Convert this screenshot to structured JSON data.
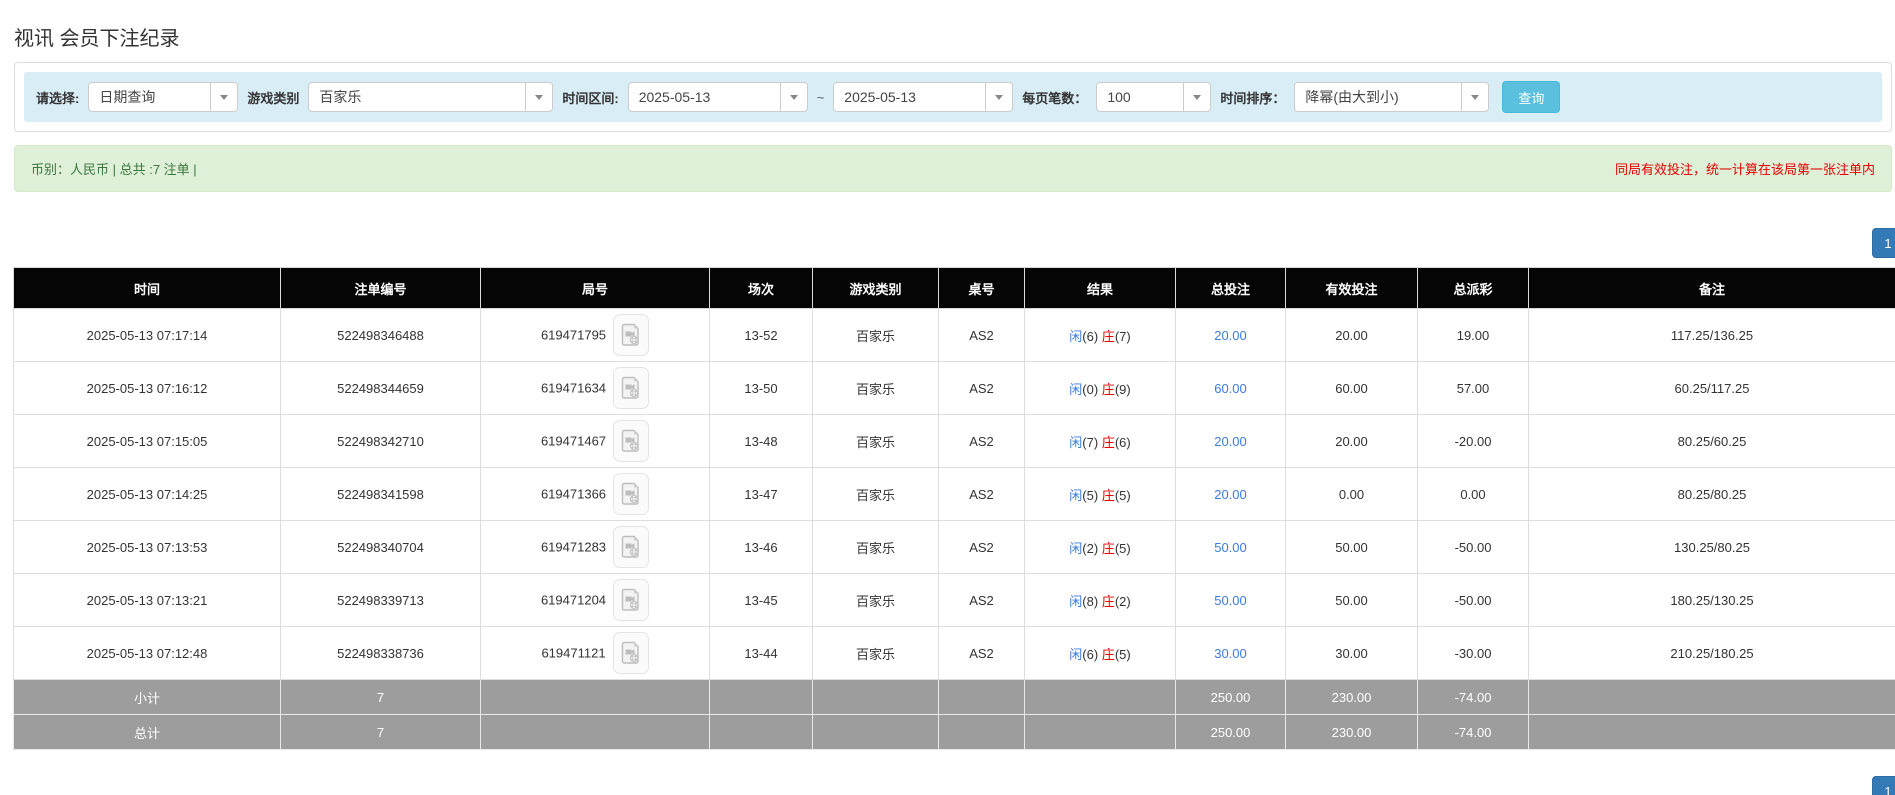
{
  "page": {
    "title": "视讯 会员下注纪录"
  },
  "filters": {
    "select_label": "请选择:",
    "select_value": "日期查询",
    "game_label": "游戏类别",
    "game_value": "百家乐",
    "range_label": "时间区间:",
    "date_from": "2025-05-13",
    "tilde": "~",
    "date_to": "2025-05-13",
    "per_page_label": "每页笔数：",
    "per_page_value": "100",
    "sort_label": "时间排序：",
    "sort_value": "降幂(由大到小)",
    "search_button": "查询"
  },
  "summary": {
    "left": "币别：人民币 | 总共 :7 注单 |",
    "right": "同局有效投注，统一计算在该局第一张注单内"
  },
  "pagination": {
    "page": "1"
  },
  "table": {
    "headers": [
      "时间",
      "注单编号",
      "局号",
      "场次",
      "游戏类别",
      "桌号",
      "结果",
      "总投注",
      "有效投注",
      "总派彩",
      "备注"
    ],
    "rows": [
      {
        "time": "2025-05-13 07:17:14",
        "bet_id": "522498346488",
        "round": "619471795",
        "session": "13-52",
        "game": "百家乐",
        "table_no": "AS2",
        "result_p": "闲",
        "result_p_n": "(6)",
        "result_b": "庄",
        "result_b_n": "(7)",
        "total_bet": "20.00",
        "valid_bet": "20.00",
        "payout": "19.00",
        "remark": "117.25/136.25"
      },
      {
        "time": "2025-05-13 07:16:12",
        "bet_id": "522498344659",
        "round": "619471634",
        "session": "13-50",
        "game": "百家乐",
        "table_no": "AS2",
        "result_p": "闲",
        "result_p_n": "(0)",
        "result_b": "庄",
        "result_b_n": "(9)",
        "total_bet": "60.00",
        "valid_bet": "60.00",
        "payout": "57.00",
        "remark": "60.25/117.25"
      },
      {
        "time": "2025-05-13 07:15:05",
        "bet_id": "522498342710",
        "round": "619471467",
        "session": "13-48",
        "game": "百家乐",
        "table_no": "AS2",
        "result_p": "闲",
        "result_p_n": "(7)",
        "result_b": "庄",
        "result_b_n": "(6)",
        "total_bet": "20.00",
        "valid_bet": "20.00",
        "payout": "-20.00",
        "remark": "80.25/60.25"
      },
      {
        "time": "2025-05-13 07:14:25",
        "bet_id": "522498341598",
        "round": "619471366",
        "session": "13-47",
        "game": "百家乐",
        "table_no": "AS2",
        "result_p": "闲",
        "result_p_n": "(5)",
        "result_b": "庄",
        "result_b_n": "(5)",
        "total_bet": "20.00",
        "valid_bet": "0.00",
        "payout": "0.00",
        "remark": "80.25/80.25"
      },
      {
        "time": "2025-05-13 07:13:53",
        "bet_id": "522498340704",
        "round": "619471283",
        "session": "13-46",
        "game": "百家乐",
        "table_no": "AS2",
        "result_p": "闲",
        "result_p_n": "(2)",
        "result_b": "庄",
        "result_b_n": "(5)",
        "total_bet": "50.00",
        "valid_bet": "50.00",
        "payout": "-50.00",
        "remark": "130.25/80.25"
      },
      {
        "time": "2025-05-13 07:13:21",
        "bet_id": "522498339713",
        "round": "619471204",
        "session": "13-45",
        "game": "百家乐",
        "table_no": "AS2",
        "result_p": "闲",
        "result_p_n": "(8)",
        "result_b": "庄",
        "result_b_n": "(2)",
        "total_bet": "50.00",
        "valid_bet": "50.00",
        "payout": "-50.00",
        "remark": "180.25/130.25"
      },
      {
        "time": "2025-05-13 07:12:48",
        "bet_id": "522498338736",
        "round": "619471121",
        "session": "13-44",
        "game": "百家乐",
        "table_no": "AS2",
        "result_p": "闲",
        "result_p_n": "(6)",
        "result_b": "庄",
        "result_b_n": "(5)",
        "total_bet": "30.00",
        "valid_bet": "30.00",
        "payout": "-30.00",
        "remark": "210.25/180.25"
      }
    ],
    "subtotal": {
      "label": "小计",
      "count": "7",
      "total_bet": "250.00",
      "valid_bet": "230.00",
      "payout": "-74.00"
    },
    "total": {
      "label": "总计",
      "count": "7",
      "total_bet": "250.00",
      "valid_bet": "230.00",
      "payout": "-74.00"
    }
  },
  "icons": {
    "video_icon": "video-file-icon",
    "caret_icon": "chevron-down-icon"
  },
  "colors": {
    "pager_blue": "#337ab7",
    "link_blue": "#3d7be0",
    "red": "#e60000",
    "search_button_bg": "#5bc0de",
    "filter_bg": "#d9edf7",
    "summary_bg": "#dff0d8",
    "summary_text": "#3c763d",
    "header_bg": "#050505",
    "sum_row_bg": "#9d9d9d"
  }
}
